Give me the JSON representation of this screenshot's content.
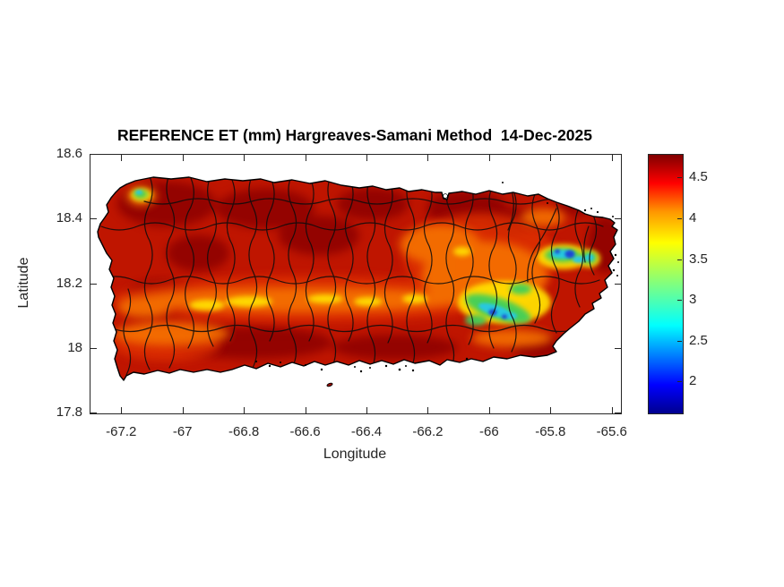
{
  "title": "REFERENCE ET (mm) Hargreaves-Samani Method  14-Dec-2025",
  "axes": {
    "xlabel": "Longitude",
    "ylabel": "Latitude",
    "x_ticks": [
      -67.2,
      -67.0,
      -66.8,
      -66.6,
      -66.4,
      -66.2,
      -66.0,
      -65.8,
      -65.6
    ],
    "x_tick_labels": [
      "-67.2",
      "-67",
      "-66.8",
      "-66.6",
      "-66.4",
      "-66.2",
      "-66",
      "-65.8",
      "-65.6"
    ],
    "y_ticks": [
      18.6,
      18.4,
      18.2,
      18.0,
      17.8
    ],
    "y_tick_labels": [
      "18.6",
      "18.4",
      "18.2",
      "18",
      "17.8"
    ],
    "xlim": [
      -67.303,
      -65.573
    ],
    "ylim": [
      17.8,
      18.6
    ],
    "tick_color": "#262626"
  },
  "colorbar": {
    "tick_values": [
      4.5,
      4.0,
      3.5,
      3.0,
      2.5,
      2.0
    ],
    "tick_labels": [
      "4.5",
      "4",
      "3.5",
      "3",
      "2.5",
      "2"
    ],
    "vmin": 1.62,
    "vmax": 4.79,
    "colormap": "jet",
    "top_color": "#800000",
    "bottom_color": "#00008f"
  },
  "chart_data": {
    "type": "heatmap",
    "title": "REFERENCE ET (mm) Hargreaves-Samani Method  14-Dec-2025",
    "xlabel": "Longitude",
    "ylabel": "Latitude",
    "xlim": [
      -67.303,
      -65.573
    ],
    "ylim": [
      17.8,
      18.6
    ],
    "x_ticks": [
      -67.2,
      -67.0,
      -66.8,
      -66.6,
      -66.4,
      -66.2,
      -66.0,
      -65.8,
      -65.6
    ],
    "y_ticks": [
      18.6,
      18.4,
      18.2,
      18.0,
      17.8
    ],
    "colormap": "jet",
    "color_axis_range": [
      1.62,
      4.79
    ],
    "colorbar_ticks": [
      2,
      2.5,
      3,
      3.5,
      4,
      4.5
    ],
    "region": "Island of Puerto Rico with municipality boundary overlay",
    "values_summary": [
      {
        "area": "most of island (coastal plains, north and south)",
        "lon": -66.6,
        "lat": 18.3,
        "et_mm": 4.5
      },
      {
        "area": "dark red interior patches",
        "lon": -66.9,
        "lat": 18.4,
        "et_mm": 4.75
      },
      {
        "area": "Cordillera Central band (orange)",
        "lon": -66.6,
        "lat": 18.14,
        "et_mm": 4.0
      },
      {
        "area": "Cordillera Central yellow cores",
        "lon": -66.75,
        "lat": 18.14,
        "et_mm": 3.5
      },
      {
        "area": "Sierra de Cayey / Carite diagonal (green-cyan)",
        "lon": -66.0,
        "lat": 18.1,
        "et_mm": 2.7
      },
      {
        "area": "Sierra de Cayey blue cores",
        "lon": -66.02,
        "lat": 18.09,
        "et_mm": 2.0
      },
      {
        "area": "El Yunque / Sierra de Luquillo (cyan ring)",
        "lon": -65.78,
        "lat": 18.29,
        "et_mm": 2.6
      },
      {
        "area": "El Yunque blue core",
        "lon": -65.76,
        "lat": 18.29,
        "et_mm": 1.9
      },
      {
        "area": "Fajardo green spot (far east)",
        "lon": -65.67,
        "lat": 18.28,
        "et_mm": 3.1
      },
      {
        "area": "Isabela/Aguadilla green spot (northwest)",
        "lon": -67.08,
        "lat": 18.47,
        "et_mm": 3.2
      }
    ]
  }
}
